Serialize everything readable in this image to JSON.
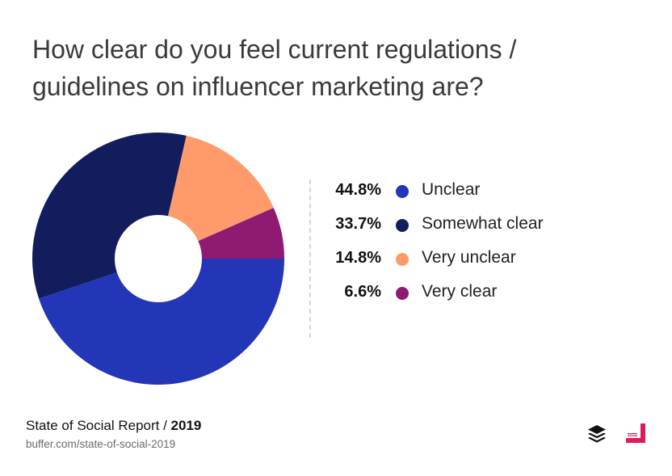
{
  "title_line1": "How clear do you feel current regulations /",
  "title_line2": "guidelines on influencer marketing are?",
  "chart_data": {
    "type": "pie",
    "donut": true,
    "title": "How clear do you feel current regulations / guidelines on influencer marketing are?",
    "categories": [
      "Unclear",
      "Somewhat clear",
      "Very unclear",
      "Very clear"
    ],
    "values": [
      44.8,
      33.7,
      14.8,
      6.6
    ],
    "value_labels": [
      "44.8%",
      "33.7%",
      "14.8%",
      "6.6%"
    ],
    "colors": [
      "#2436b8",
      "#131d5e",
      "#ff9b6b",
      "#8e1a72"
    ],
    "legend_placement": "right"
  },
  "footer": {
    "report": "State of Social Report / ",
    "year": "2019",
    "url": "buffer.com/state-of-social-2019"
  },
  "logos": {
    "buffer_icon": "buffer-layers-icon",
    "stamp_icon": "social-media-stamp-icon",
    "stamp_color": "#e0195f"
  }
}
